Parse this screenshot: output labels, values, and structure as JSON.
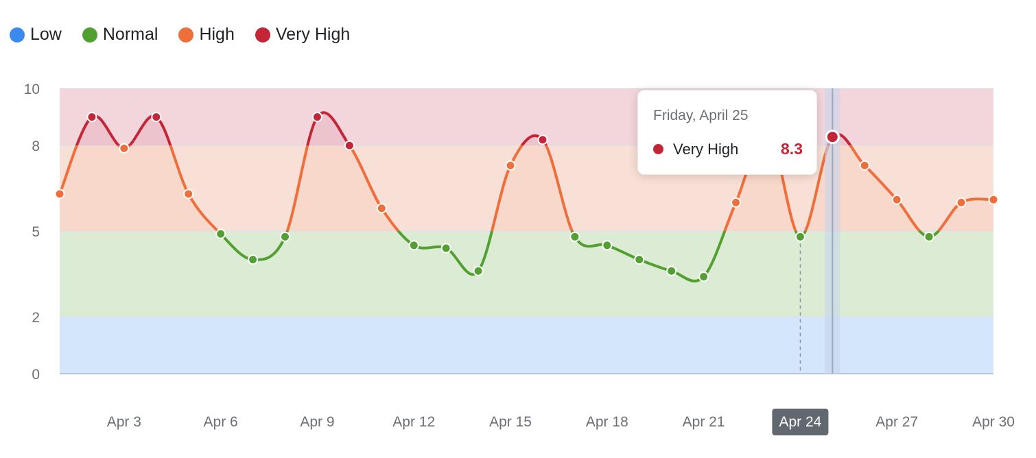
{
  "legend": [
    {
      "label": "Low",
      "color": "#3b8bef"
    },
    {
      "label": "Normal",
      "color": "#52a032"
    },
    {
      "label": "High",
      "color": "#ef6f3c"
    },
    {
      "label": "Very High",
      "color": "#c42638"
    }
  ],
  "tooltip": {
    "date": "Friday, April 25",
    "label": "Very High",
    "value": "8.3",
    "color": "#c42638"
  },
  "chart_data": {
    "type": "area",
    "xlim": [
      "Apr 1",
      "Apr 30"
    ],
    "ylim": [
      0,
      10
    ],
    "yticks": [
      0,
      2,
      5,
      8,
      10
    ],
    "xtick_labels": [
      "Apr 3",
      "Apr 6",
      "Apr 9",
      "Apr 12",
      "Apr 15",
      "Apr 18",
      "Apr 21",
      "Apr 24",
      "Apr 27",
      "Apr 30"
    ],
    "highlighted_xtick": "Apr 24",
    "grid": true,
    "legend_position": "top-left",
    "bands": [
      {
        "name": "Low",
        "from": 0,
        "to": 2,
        "color": "#d3e6fb"
      },
      {
        "name": "Normal",
        "from": 2,
        "to": 5,
        "color": "#dcecd4"
      },
      {
        "name": "High",
        "from": 5,
        "to": 8,
        "color": "#f9e0d6"
      },
      {
        "name": "Very High",
        "from": 8,
        "to": 10,
        "color": "#f3d6dc"
      }
    ],
    "series": [
      {
        "x": [
          "Apr 1",
          "Apr 2",
          "Apr 3",
          "Apr 4",
          "Apr 5",
          "Apr 6",
          "Apr 7",
          "Apr 8",
          "Apr 9",
          "Apr 10",
          "Apr 11",
          "Apr 12",
          "Apr 13",
          "Apr 14",
          "Apr 15",
          "Apr 16",
          "Apr 17",
          "Apr 18",
          "Apr 19",
          "Apr 20",
          "Apr 21",
          "Apr 22",
          "Apr 23",
          "Apr 24",
          "Apr 25",
          "Apr 26",
          "Apr 27",
          "Apr 28",
          "Apr 29",
          "Apr 30"
        ],
        "values": [
          6.3,
          9.0,
          7.9,
          9.0,
          6.3,
          4.9,
          4.0,
          4.8,
          9.0,
          8.0,
          5.8,
          4.5,
          4.4,
          3.6,
          7.3,
          8.2,
          4.8,
          4.5,
          4.0,
          3.6,
          3.4,
          6.0,
          8.5,
          4.8,
          8.3,
          7.3,
          6.1,
          4.8,
          6.0,
          6.1
        ]
      }
    ],
    "highlighted_point": {
      "x": "Apr 25",
      "y": 8.3
    }
  }
}
